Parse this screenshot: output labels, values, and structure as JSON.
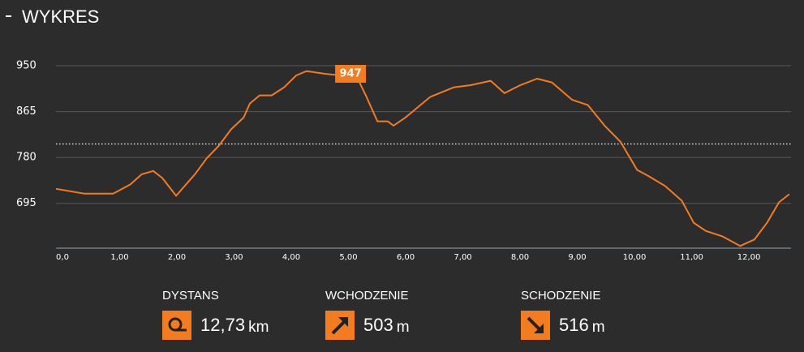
{
  "header": {
    "title": "WYKRES"
  },
  "chart_data": {
    "type": "line",
    "x": [
      0,
      0.5,
      1.0,
      1.3,
      1.5,
      1.7,
      1.86,
      2.1,
      2.43,
      2.64,
      2.85,
      3.06,
      3.28,
      3.39,
      3.56,
      3.77,
      3.99,
      4.2,
      4.38,
      4.7,
      4.98,
      5.26,
      5.43,
      5.62,
      5.8,
      5.9,
      6.11,
      6.28,
      6.54,
      6.96,
      7.25,
      7.6,
      7.84,
      8.1,
      8.41,
      8.67,
      9.02,
      9.3,
      9.59,
      9.87,
      10.16,
      10.37,
      10.65,
      10.94,
      11.15,
      11.36,
      11.65,
      11.96,
      12.21,
      12.43,
      12.64,
      12.82
    ],
    "series": [
      {
        "color": "#f47c20",
        "values": [
          722,
          713,
          713,
          730,
          749,
          755,
          742,
          709,
          749,
          779,
          802,
          832,
          854,
          880,
          895,
          895,
          910,
          932,
          940,
          935,
          932,
          929,
          892,
          847,
          847,
          839,
          854,
          869,
          892,
          910,
          914,
          922,
          899,
          913,
          926,
          919,
          887,
          877,
          839,
          809,
          757,
          745,
          727,
          700,
          659,
          644,
          634,
          616,
          628,
          659,
          697,
          712
        ]
      }
    ],
    "xlim": [
      0,
      12.85
    ],
    "ylim": [
      612,
      950
    ],
    "xticks": [
      {
        "value": 0,
        "label": "0,0"
      },
      {
        "value": 1,
        "label": "1,00"
      },
      {
        "value": 2,
        "label": "2,00"
      },
      {
        "value": 3,
        "label": "3,00"
      },
      {
        "value": 4,
        "label": "4,00"
      },
      {
        "value": 5,
        "label": "5,00"
      },
      {
        "value": 6,
        "label": "6,00"
      },
      {
        "value": 7,
        "label": "7,00"
      },
      {
        "value": 8,
        "label": "8,00"
      },
      {
        "value": 9,
        "label": "9,00"
      },
      {
        "value": 10,
        "label": "10,00"
      },
      {
        "value": 11,
        "label": "11,00"
      },
      {
        "value": 12,
        "label": "12,00"
      }
    ],
    "yticks": [
      950,
      865,
      780,
      695
    ],
    "grid": true,
    "reference_line": 805,
    "annotation": {
      "x": 5.15,
      "y": 947
    }
  },
  "stats": [
    {
      "label": "DYSTANS",
      "value": "12,73",
      "unit": "km"
    },
    {
      "label": "WCHODZENIE",
      "value": "503",
      "unit": "m"
    },
    {
      "label": "SCHODZENIE",
      "value": "516",
      "unit": "m"
    }
  ]
}
